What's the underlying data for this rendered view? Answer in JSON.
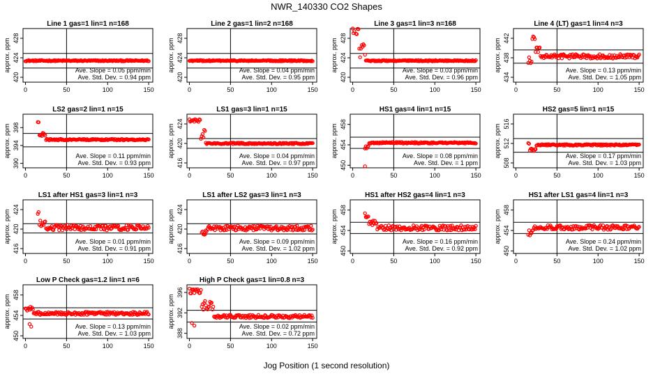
{
  "figure": {
    "title": "NWR_140330  CO2 Shapes",
    "xlabel": "Jog Position (1 second resolution)",
    "colors": {
      "points": "#ff0000",
      "axes": "#000000",
      "background": "#ffffff"
    }
  },
  "chart_data": [
    {
      "type": "scatter",
      "title": "Line 1 gas=1 lin=1 n=168",
      "xlabel": "",
      "ylabel": "approx. ppm",
      "xlim": [
        -3,
        155
      ],
      "ylim": [
        419,
        430
      ],
      "xticks": [
        0,
        50,
        100,
        150
      ],
      "yticks": [
        420,
        424,
        428
      ],
      "hlines": [
        424.9,
        421.9
      ],
      "vline": 50,
      "annotation_lines": [
        "Ave. Slope = 0.05 ppm/min",
        "Ave. Std. Dev. = 0.94 ppm"
      ],
      "profile": {
        "x_start": 0,
        "x_end": 150,
        "base": 423.4,
        "noise": 0.12,
        "segments": []
      }
    },
    {
      "type": "scatter",
      "title": "Line 2 gas=1 lin=2 n=168",
      "xlabel": "",
      "ylabel": "approx. ppm",
      "xlim": [
        -3,
        155
      ],
      "ylim": [
        419,
        430
      ],
      "xticks": [
        0,
        50,
        100,
        150
      ],
      "yticks": [
        420,
        424,
        428
      ],
      "hlines": [
        424.9,
        421.9
      ],
      "vline": 50,
      "annotation_lines": [
        "Ave. Slope = 0.04 ppm/min",
        "Ave. Std. Dev. = 0.95 ppm"
      ],
      "profile": {
        "x_start": 0,
        "x_end": 150,
        "base": 423.4,
        "noise": 0.12,
        "segments": []
      }
    },
    {
      "type": "scatter",
      "title": "Line 3 gas=1 lin=3 n=168",
      "xlabel": "",
      "ylabel": "approx. ppm",
      "xlim": [
        -3,
        155
      ],
      "ylim": [
        419,
        430
      ],
      "xticks": [
        0,
        50,
        100,
        150
      ],
      "yticks": [
        420,
        424,
        428
      ],
      "hlines": [
        424.9,
        421.9
      ],
      "vline": 50,
      "annotation_lines": [
        "Ave. Slope = 0.03 ppm/min",
        "Ave. Std. Dev. = 0.96 ppm"
      ],
      "profile": {
        "x_start": 0,
        "x_end": 150,
        "base": 423.4,
        "noise": 0.12,
        "segments": [
          {
            "from": 0,
            "to": 8,
            "value": 429.5,
            "noise": 0.9
          },
          {
            "from": 8,
            "to": 16,
            "value": 425.5,
            "noise": 1.5
          }
        ]
      }
    },
    {
      "type": "scatter",
      "title": "Line 4 (LT) gas=1 lin=4 n=3",
      "xlabel": "",
      "ylabel": "approx. ppm",
      "xlim": [
        -3,
        155
      ],
      "ylim": [
        433,
        444
      ],
      "xticks": [
        0,
        50,
        100,
        150
      ],
      "yticks": [
        434,
        438,
        442
      ],
      "hlines": [
        439.6,
        436.9
      ],
      "vline": 50,
      "annotation_lines": [
        "Ave. Slope = 0.13 ppm/min",
        "Ave. Std. Dev. = 1.05 ppm"
      ],
      "profile": {
        "x_start": 15,
        "x_end": 150,
        "base": 438.3,
        "noise": 0.45,
        "segments": [
          {
            "from": 15,
            "to": 20,
            "value": 437.5,
            "noise": 0.8
          },
          {
            "from": 20,
            "to": 24,
            "value": 441.5,
            "noise": 1.2
          },
          {
            "from": 24,
            "to": 30,
            "value": 439.6,
            "noise": 0.6
          }
        ]
      }
    },
    {
      "type": "scatter",
      "title": "LS2 gas=2 lin=1 n=15",
      "xlabel": "",
      "ylabel": "approx. ppm",
      "xlim": [
        -3,
        155
      ],
      "ylim": [
        389,
        401
      ],
      "xticks": [
        0,
        50,
        100,
        150
      ],
      "yticks": [
        390,
        394,
        398
      ],
      "hlines": [
        396.7,
        393.7
      ],
      "vline": 50,
      "annotation_lines": [
        "Ave. Slope = 0.11 ppm/min",
        "Ave. Std. Dev. = 0.93 ppm"
      ],
      "profile": {
        "x_start": 15,
        "x_end": 150,
        "base": 395.3,
        "noise": 0.15,
        "segments": [
          {
            "from": 15,
            "to": 17,
            "value": 399.2,
            "noise": 0.4
          },
          {
            "from": 17,
            "to": 25,
            "value": 396.4,
            "noise": 0.4
          }
        ]
      }
    },
    {
      "type": "scatter",
      "title": "LS1 gas=3 lin=1 n=15",
      "xlabel": "",
      "ylabel": "approx. ppm",
      "xlim": [
        -3,
        155
      ],
      "ylim": [
        415,
        426
      ],
      "xticks": [
        0,
        50,
        100,
        150
      ],
      "yticks": [
        416,
        420,
        424
      ],
      "hlines": [
        421.0,
        419.0
      ],
      "vline": 50,
      "annotation_lines": [
        "Ave. Slope = 0.04 ppm/min",
        "Ave. Std. Dev. = 0.97 ppm"
      ],
      "profile": {
        "x_start": 0,
        "x_end": 150,
        "base": 420.0,
        "noise": 0.15,
        "segments": [
          {
            "from": 0,
            "to": 14,
            "value": 424.7,
            "noise": 0.3
          },
          {
            "from": 14,
            "to": 20,
            "value": 421.8,
            "noise": 1.0
          }
        ]
      }
    },
    {
      "type": "scatter",
      "title": "HS1 gas=4 lin=1 n=15",
      "xlabel": "",
      "ylabel": "approx. ppm",
      "xlim": [
        -3,
        155
      ],
      "ylim": [
        449.5,
        460
      ],
      "xticks": [
        0,
        50,
        100,
        150
      ],
      "yticks": [
        450,
        454,
        458
      ],
      "hlines": [
        455.5,
        453.3
      ],
      "vline": 50,
      "annotation_lines": [
        "Ave. Slope = 0.08 ppm/min",
        "Ave. Std. Dev. = 1 ppm"
      ],
      "profile": {
        "x_start": 15,
        "x_end": 150,
        "base": 454.4,
        "noise": 0.15,
        "outliers": [
          [
            15,
            449.8
          ]
        ],
        "segments": [
          {
            "from": 15,
            "to": 20,
            "value": 453.5,
            "noise": 0.5
          }
        ]
      }
    },
    {
      "type": "scatter",
      "title": "HS2 gas=5 lin=1 n=15",
      "xlabel": "",
      "ylabel": "approx. ppm",
      "xlim": [
        -3,
        155
      ],
      "ylim": [
        507,
        518
      ],
      "xticks": [
        0,
        50,
        100,
        150
      ],
      "yticks": [
        508,
        512,
        516
      ],
      "hlines": [
        513.0,
        510.2
      ],
      "vline": 50,
      "annotation_lines": [
        "Ave. Slope = 0.17 ppm/min",
        "Ave. Std. Dev. = 1.03 ppm"
      ],
      "profile": {
        "x_start": 15,
        "x_end": 150,
        "base": 511.7,
        "noise": 0.15,
        "segments": [
          {
            "from": 15,
            "to": 17,
            "value": 512.0,
            "noise": 0.2
          },
          {
            "from": 17,
            "to": 25,
            "value": 510.7,
            "noise": 0.3
          }
        ]
      }
    },
    {
      "type": "scatter",
      "title": "LS1 after HS1 gas=3 lin=1 n=3",
      "xlabel": "",
      "ylabel": "approx. ppm",
      "xlim": [
        -3,
        155
      ],
      "ylim": [
        415,
        426
      ],
      "xticks": [
        0,
        50,
        100,
        150
      ],
      "yticks": [
        416,
        420,
        424
      ],
      "hlines": [
        421.1,
        419.2
      ],
      "vline": 50,
      "annotation_lines": [
        "Ave. Slope = 0.01 ppm/min",
        "Ave. Std. Dev. = 0.91 ppm"
      ],
      "profile": {
        "x_start": 15,
        "x_end": 150,
        "base": 420.3,
        "noise": 0.55,
        "segments": [
          {
            "from": 15,
            "to": 17,
            "value": 423.3,
            "noise": 0.2
          },
          {
            "from": 17,
            "to": 25,
            "value": 421.2,
            "noise": 0.6
          }
        ]
      }
    },
    {
      "type": "scatter",
      "title": "LS1 after LS2 gas=3 lin=1 n=3",
      "xlabel": "",
      "ylabel": "approx. ppm",
      "xlim": [
        -3,
        155
      ],
      "ylim": [
        415,
        426
      ],
      "xticks": [
        0,
        50,
        100,
        150
      ],
      "yticks": [
        416,
        420,
        424
      ],
      "hlines": [
        421.1,
        419.0
      ],
      "vline": 50,
      "annotation_lines": [
        "Ave. Slope = 0.09 ppm/min",
        "Ave. Std. Dev. = 1.02 ppm"
      ],
      "profile": {
        "x_start": 15,
        "x_end": 150,
        "base": 420.2,
        "noise": 0.5,
        "segments": [
          {
            "from": 15,
            "to": 22,
            "value": 419.4,
            "noise": 0.7
          }
        ]
      }
    },
    {
      "type": "scatter",
      "title": "HS1 after HS2 gas=4 lin=1 n=3",
      "xlabel": "",
      "ylabel": "approx. ppm",
      "xlim": [
        -3,
        155
      ],
      "ylim": [
        449.5,
        460
      ],
      "xticks": [
        0,
        50,
        100,
        150
      ],
      "yticks": [
        450,
        454,
        458
      ],
      "hlines": [
        455.6,
        453.4
      ],
      "vline": 50,
      "annotation_lines": [
        "Ave. Slope = 0.16 ppm/min",
        "Ave. Std. Dev. = 0.92 ppm"
      ],
      "profile": {
        "x_start": 15,
        "x_end": 150,
        "base": 454.5,
        "noise": 0.5,
        "segments": [
          {
            "from": 15,
            "to": 20,
            "value": 457.0,
            "noise": 0.6
          },
          {
            "from": 20,
            "to": 30,
            "value": 455.5,
            "noise": 0.5
          }
        ]
      }
    },
    {
      "type": "scatter",
      "title": "HS1 after LS1 gas=4 lin=1 n=3",
      "xlabel": "",
      "ylabel": "approx. ppm",
      "xlim": [
        -3,
        155
      ],
      "ylim": [
        449.5,
        460
      ],
      "xticks": [
        0,
        50,
        100,
        150
      ],
      "yticks": [
        450,
        454,
        458
      ],
      "hlines": [
        455.6,
        453.4
      ],
      "vline": 50,
      "annotation_lines": [
        "Ave. Slope = 0.24 ppm/min",
        "Ave. Std. Dev. = 1.02 ppm"
      ],
      "profile": {
        "x_start": 15,
        "x_end": 150,
        "base": 454.6,
        "noise": 0.45,
        "segments": [
          {
            "from": 15,
            "to": 22,
            "value": 453.6,
            "noise": 0.7
          }
        ]
      }
    },
    {
      "type": "scatter",
      "title": "Low P Check gas=1.2 lin=1 n=6",
      "xlabel": "",
      "ylabel": "approx. ppm",
      "xlim": [
        -3,
        155
      ],
      "ylim": [
        449.5,
        460
      ],
      "xticks": [
        0,
        50,
        100,
        150
      ],
      "yticks": [
        450,
        454,
        458
      ],
      "hlines": [
        455.5,
        453.3
      ],
      "vline": 50,
      "annotation_lines": [
        "Ave. Slope = 0.13 ppm/min",
        "Ave. Std. Dev. = 1.03 ppm"
      ],
      "profile": {
        "x_start": 0,
        "x_end": 150,
        "base": 454.4,
        "noise": 0.3,
        "outliers": [
          [
            5,
            452.3
          ],
          [
            7,
            451.8
          ]
        ],
        "segments": [
          {
            "from": 0,
            "to": 10,
            "value": 455.3,
            "noise": 0.4
          }
        ]
      }
    },
    {
      "type": "scatter",
      "title": "High P Check gas=1 lin=0.8 n=3",
      "xlabel": "",
      "ylabel": "approx. ppm",
      "xlim": [
        -3,
        155
      ],
      "ylim": [
        387,
        397.5
      ],
      "xticks": [
        0,
        50,
        100,
        150
      ],
      "yticks": [
        388,
        392,
        396
      ],
      "hlines": [
        392.5,
        390.2
      ],
      "vline": 50,
      "annotation_lines": [
        "Ave. Slope = 0.02 ppm/min",
        "Ave. Std. Dev. = 0.72 ppm"
      ],
      "profile": {
        "x_start": 0,
        "x_end": 150,
        "base": 391.3,
        "noise": 0.3,
        "outliers": [
          [
            3,
            390.0
          ],
          [
            6,
            389.5
          ]
        ],
        "segments": [
          {
            "from": 0,
            "to": 15,
            "value": 396.3,
            "noise": 0.5
          },
          {
            "from": 15,
            "to": 30,
            "value": 393.5,
            "noise": 0.9
          }
        ]
      }
    }
  ]
}
